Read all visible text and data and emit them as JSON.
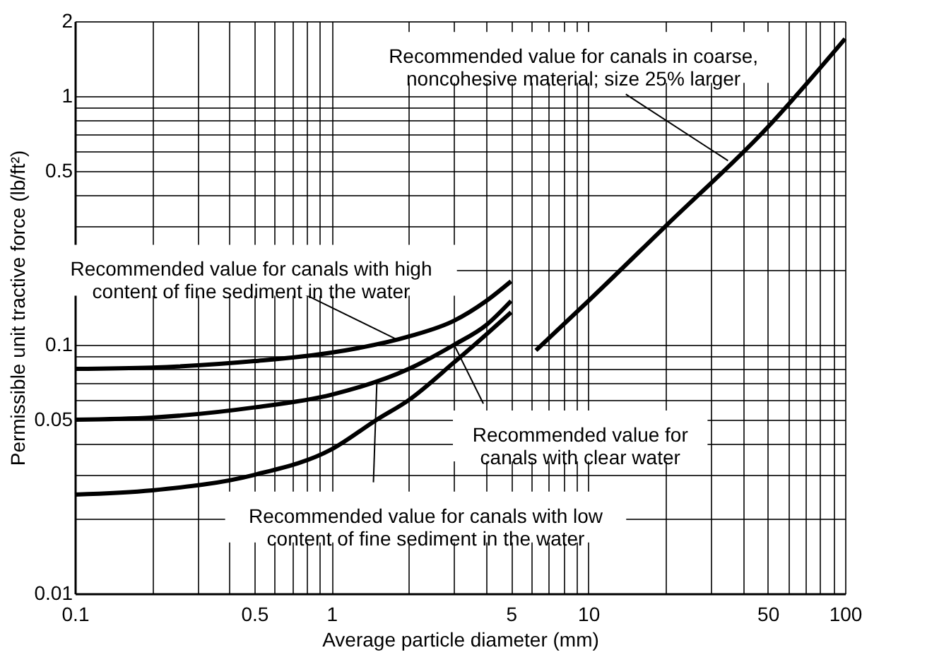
{
  "chart_data": {
    "type": "line",
    "xlabel": "Average particle diameter (mm)",
    "ylabel": "Permissible unit tractive force (lb/ft²)",
    "log": "xy",
    "grid": true,
    "line_style": "solid",
    "marker": "none",
    "xlim": [
      0.1,
      100
    ],
    "ylim": [
      0.01,
      2
    ],
    "xticks": [
      0.1,
      {
        "value": 0.2,
        "label": null
      },
      {
        "value": 0.3,
        "label": null
      },
      {
        "value": 0.4,
        "label": null
      },
      0.5,
      {
        "value": 0.6,
        "label": null
      },
      {
        "value": 0.7,
        "label": null
      },
      {
        "value": 0.8,
        "label": null
      },
      {
        "value": 0.9,
        "label": null
      },
      1,
      {
        "value": 2,
        "label": null
      },
      {
        "value": 3,
        "label": null
      },
      {
        "value": 4,
        "label": null
      },
      5,
      {
        "value": 6,
        "label": null
      },
      {
        "value": 7,
        "label": null
      },
      {
        "value": 8,
        "label": null
      },
      {
        "value": 9,
        "label": null
      },
      10,
      {
        "value": 20,
        "label": null
      },
      {
        "value": 30,
        "label": null
      },
      {
        "value": 40,
        "label": null
      },
      50,
      {
        "value": 60,
        "label": null
      },
      {
        "value": 70,
        "label": null
      },
      {
        "value": 80,
        "label": null
      },
      {
        "value": 90,
        "label": null
      },
      100
    ],
    "yticks": [
      0.01,
      {
        "value": 0.02,
        "label": null
      },
      {
        "value": 0.03,
        "label": null
      },
      {
        "value": 0.04,
        "label": null
      },
      0.05,
      {
        "value": 0.06,
        "label": null
      },
      {
        "value": 0.07,
        "label": null
      },
      {
        "value": 0.08,
        "label": null
      },
      {
        "value": 0.09,
        "label": null
      },
      0.1,
      {
        "value": 0.2,
        "label": null
      },
      {
        "value": 0.3,
        "label": null
      },
      {
        "value": 0.4,
        "label": null
      },
      0.5,
      {
        "value": 0.6,
        "label": null
      },
      {
        "value": 0.7,
        "label": null
      },
      {
        "value": 0.8,
        "label": null
      },
      {
        "value": 0.9,
        "label": null
      },
      1,
      2
    ],
    "series": [
      {
        "color": "#000000",
        "x": [
          0.1,
          0.2,
          0.5,
          1,
          2,
          3,
          4,
          5
        ],
        "values": [
          0.08,
          0.081,
          0.086,
          0.093,
          0.108,
          0.125,
          0.15,
          0.18
        ]
      },
      {
        "color": "#000000",
        "x": [
          0.1,
          0.2,
          0.5,
          1,
          2,
          3,
          4,
          5
        ],
        "values": [
          0.05,
          0.051,
          0.056,
          0.063,
          0.08,
          0.1,
          0.12,
          0.15
        ]
      },
      {
        "color": "#000000",
        "x": [
          0.1,
          0.2,
          0.5,
          1,
          1.5,
          2,
          3,
          4,
          5
        ],
        "values": [
          0.025,
          0.026,
          0.03,
          0.038,
          0.05,
          0.06,
          0.085,
          0.11,
          0.135
        ]
      },
      {
        "color": "#000000",
        "x": [
          6.25,
          10,
          20,
          50,
          100
        ],
        "values": [
          0.095,
          0.15,
          0.3,
          0.75,
          1.7
        ]
      }
    ],
    "annotations": [
      {
        "text": "Recommended value for canals in coarse,\nnoncohesive material; size 25% larger",
        "x": 35,
        "y": 0.55
      },
      {
        "text": "Recommended value for canals with high\ncontent of fine sediment in the water",
        "x": 1.8,
        "y": 0.105
      },
      {
        "text": "Recommended value for\ncanals with clear water",
        "x": 3,
        "y": 0.1
      },
      {
        "text": "Recommended value for canals with low\ncontent of fine sediment in the water",
        "x": 1.5,
        "y": 0.07
      }
    ]
  }
}
